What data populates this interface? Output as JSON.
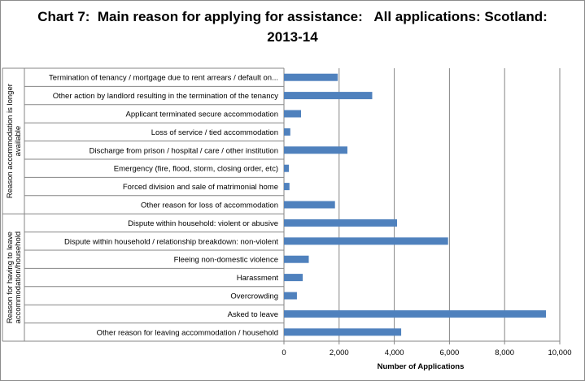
{
  "chart_data": {
    "type": "bar",
    "orientation": "horizontal",
    "title": [
      "Chart 7:  Main reason for applying for assistance:   All applications: Scotland:",
      "2013-14"
    ],
    "xlabel": "Number of Applications",
    "xlim": [
      0,
      10000
    ],
    "xticks": [
      "0",
      "2,000",
      "4,000",
      "6,000",
      "8,000",
      "10,000"
    ],
    "xtick_values": [
      0,
      2000,
      4000,
      6000,
      8000,
      10000
    ],
    "grid": "vertical",
    "bar_color": "#4F81BD",
    "groups": [
      {
        "label": [
          "Reason accommodation is longer",
          "available"
        ],
        "categories": [
          "Termination of tenancy / mortgage due to rent arrears / default on...",
          "Other action by landlord resulting in the termination of the tenancy",
          "Applicant terminated secure accommodation",
          "Loss of service / tied accommodation",
          "Discharge from prison / hospital / care / other institution",
          "Emergency (fire, flood, storm, closing order, etc)",
          "Forced division and sale of matrimonial home",
          "Other reason for loss of accommodation"
        ],
        "values": [
          1950,
          3200,
          620,
          230,
          2300,
          180,
          200,
          1850
        ]
      },
      {
        "label": [
          "Reason for having to leave",
          "accommodation/household"
        ],
        "categories": [
          "Dispute within household: violent or abusive",
          "Dispute within household / relationship breakdown: non-violent",
          "Fleeing non-domestic violence",
          "Harassment",
          "Overcrowding",
          "Asked to leave",
          "Other reason for leaving accommodation / household"
        ],
        "values": [
          4100,
          5950,
          900,
          680,
          470,
          9500,
          4250
        ]
      }
    ]
  }
}
